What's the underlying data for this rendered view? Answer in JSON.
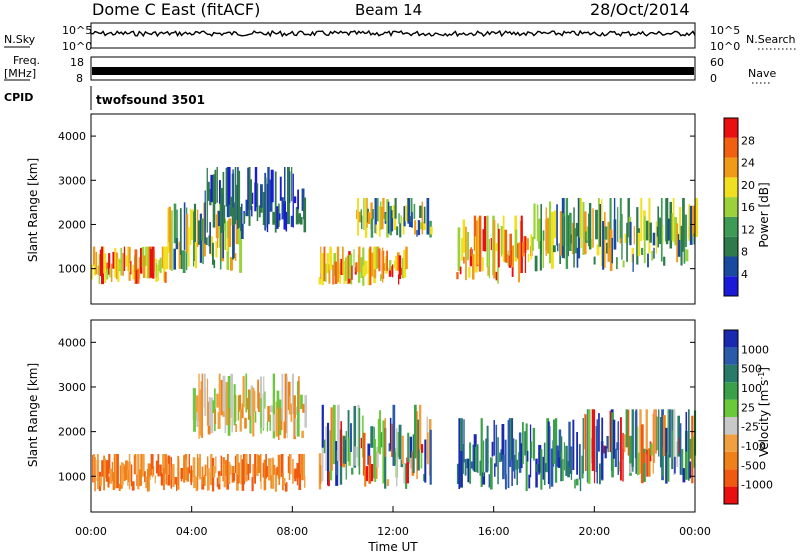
{
  "header": {
    "station": "Dome C East (fitACF)",
    "beam": "Beam 14",
    "date": "28/Oct/2014"
  },
  "top_panels": {
    "nsky_label": "N.Sky",
    "nsky_ticks": [
      "10^5",
      "10^0"
    ],
    "nsearch_label": "N.Search",
    "nsearch_ticks": [
      "10^5",
      "10^0"
    ],
    "freq_label_1": "Freq.",
    "freq_label_2": "[MHz]",
    "freq_ticks": [
      "18",
      "8"
    ],
    "nave_label": "Nave",
    "nave_ticks": [
      "60",
      "0"
    ],
    "cpid_label": "CPID",
    "cpid_value": "twofsound 3501"
  },
  "colors": {
    "power": [
      "#1a1ad8",
      "#1a4aa0",
      "#2f7a4a",
      "#3f9a55",
      "#9bd23a",
      "#f0e020",
      "#f09a18",
      "#f06010",
      "#e81010"
    ],
    "velocity": [
      "#1a2ab0",
      "#2a5aa8",
      "#2a7a6a",
      "#3aa04a",
      "#6ac83a",
      "#c8c8c8",
      "#f0a040",
      "#f08018",
      "#f05a10",
      "#e81010"
    ]
  },
  "chart_data": [
    {
      "type": "heatmap",
      "title": "Power",
      "xlabel": "",
      "ylabel": "Slant Range [km]",
      "xlim": [
        0,
        24
      ],
      "ylim": [
        200,
        4500
      ],
      "y_ticks": [
        "1000",
        "2000",
        "3000",
        "4000"
      ],
      "colorbar_label": "Power [dB]",
      "colorbar_ticks": [
        "4",
        "8",
        "12",
        "16",
        "20",
        "24",
        "28"
      ],
      "grid": false,
      "regions": [
        {
          "x": [
            0.0,
            3.0
          ],
          "y": [
            650,
            1500
          ],
          "level": "high"
        },
        {
          "x": [
            3.0,
            6.0
          ],
          "y": [
            900,
            2500
          ],
          "level": "mid"
        },
        {
          "x": [
            4.5,
            8.5
          ],
          "y": [
            1800,
            3300
          ],
          "level": "low"
        },
        {
          "x": [
            9.0,
            12.5
          ],
          "y": [
            600,
            1500
          ],
          "level": "high"
        },
        {
          "x": [
            10.5,
            13.5
          ],
          "y": [
            1700,
            2600
          ],
          "level": "mid"
        },
        {
          "x": [
            14.5,
            17.5
          ],
          "y": [
            650,
            2200
          ],
          "level": "high"
        },
        {
          "x": [
            17.5,
            24.0
          ],
          "y": [
            900,
            2600
          ],
          "level": "mid"
        }
      ]
    },
    {
      "type": "heatmap",
      "title": "Velocity",
      "xlabel": "Time UT",
      "ylabel": "Slant Range [km]",
      "xlim": [
        0,
        24
      ],
      "ylim": [
        200,
        4500
      ],
      "y_ticks": [
        "1000",
        "2000",
        "3000",
        "4000"
      ],
      "x_ticks": [
        "00:00",
        "04:00",
        "08:00",
        "12:00",
        "16:00",
        "20:00",
        "00:00"
      ],
      "colorbar_label": "Velocity [m s^-1]",
      "colorbar_ticks": [
        "1000",
        "500",
        "100",
        "25",
        "-25",
        "-100",
        "-500",
        "-1000"
      ],
      "grid": false,
      "regions": [
        {
          "x": [
            0.0,
            8.5
          ],
          "y": [
            650,
            1500
          ],
          "level": "negative"
        },
        {
          "x": [
            4.0,
            8.5
          ],
          "y": [
            1800,
            3300
          ],
          "level": "near-zero"
        },
        {
          "x": [
            9.0,
            13.5
          ],
          "y": [
            700,
            2600
          ],
          "level": "mixed"
        },
        {
          "x": [
            14.5,
            19.5
          ],
          "y": [
            650,
            2300
          ],
          "level": "positive"
        },
        {
          "x": [
            19.5,
            24.0
          ],
          "y": [
            800,
            2500
          ],
          "level": "mixed"
        }
      ]
    }
  ]
}
